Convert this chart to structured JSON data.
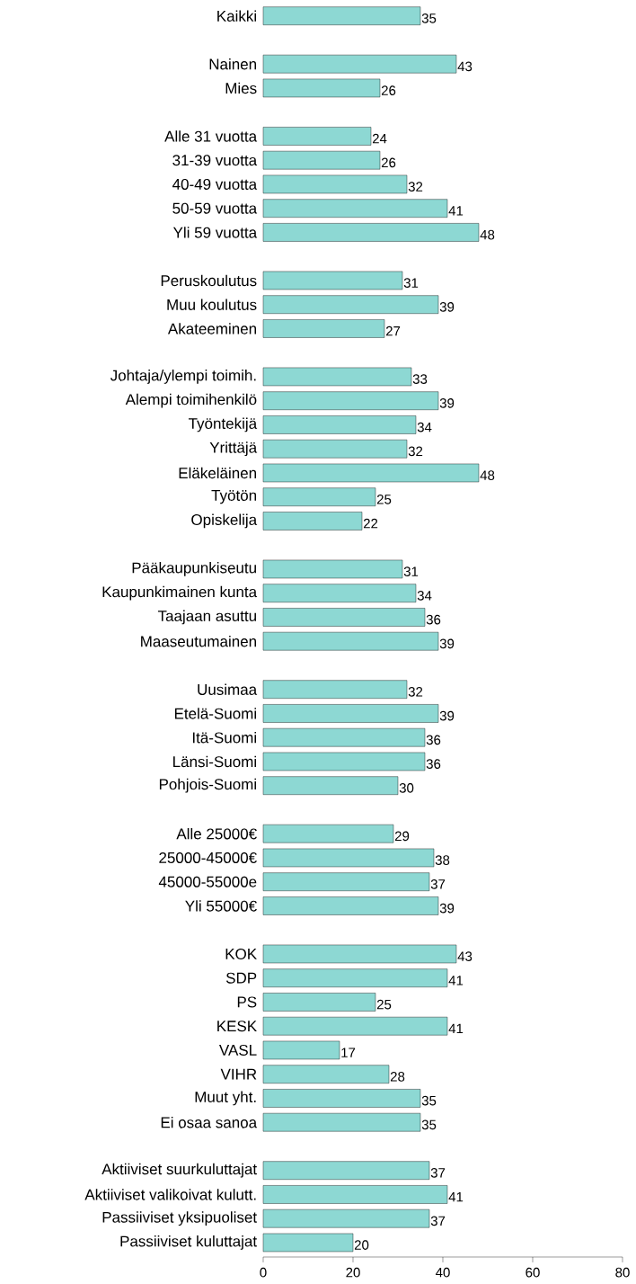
{
  "chart_data": {
    "type": "bar",
    "orientation": "horizontal",
    "color": "#8dd8d3",
    "data_labels": true,
    "categories": [
      "Kaikki",
      null,
      "Nainen",
      "Mies",
      null,
      "Alle 31 vuotta",
      "31-39 vuotta",
      "40-49 vuotta",
      "50-59 vuotta",
      "Yli 59 vuotta",
      null,
      "Peruskoulutus",
      "Muu koulutus",
      "Akateeminen",
      null,
      "Johtaja/ylempi toimih.",
      "Alempi toimihenkilö",
      "Työntekijä",
      "Yrittäjä",
      "Eläkeläinen",
      "Työtön",
      "Opiskelija",
      null,
      "Pääkaupunkiseutu",
      "Kaupunkimainen kunta",
      "Taajaan asuttu",
      "Maaseutumainen",
      null,
      "Uusimaa",
      "Etelä-Suomi",
      "Itä-Suomi",
      "Länsi-Suomi",
      "Pohjois-Suomi",
      null,
      "Alle 25000€",
      "25000-45000€",
      "45000-55000e",
      "Yli 55000€",
      null,
      "KOK",
      "SDP",
      "PS",
      "KESK",
      "VASL",
      "VIHR",
      "Muut yht.",
      "Ei osaa sanoa",
      null,
      "Aktiiviset suurkuluttajat",
      "Aktiiviset valikoivat kulutt.",
      "Passiiviset yksipuoliset",
      "Passiiviset kuluttajat"
    ],
    "values": [
      35,
      null,
      43,
      26,
      null,
      24,
      26,
      32,
      41,
      48,
      null,
      31,
      39,
      27,
      null,
      33,
      39,
      34,
      32,
      48,
      25,
      22,
      null,
      31,
      34,
      36,
      39,
      null,
      32,
      39,
      36,
      36,
      30,
      null,
      29,
      38,
      37,
      39,
      null,
      43,
      41,
      25,
      41,
      17,
      28,
      35,
      35,
      null,
      37,
      41,
      37,
      20
    ],
    "xlim": [
      0,
      80
    ],
    "xticks": [
      0,
      20,
      40,
      60,
      80
    ]
  }
}
